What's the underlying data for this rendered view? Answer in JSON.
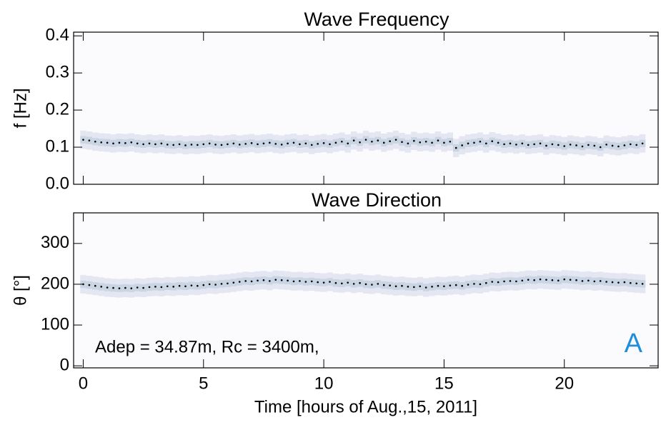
{
  "chart_data": [
    {
      "type": "scatter",
      "title": "Wave Frequency",
      "ylabel": "f [Hz]",
      "xlim": [
        -0.4,
        23.9
      ],
      "xticks": [
        0,
        5,
        10,
        15,
        20
      ],
      "ylim": [
        0,
        0.41
      ],
      "yticks": [
        {
          "value": 0,
          "label": "0.0"
        },
        0.1,
        0.2,
        0.3,
        0.4
      ],
      "x": [
        0,
        0.25,
        0.5,
        0.75,
        1,
        1.25,
        1.5,
        1.75,
        2,
        2.25,
        2.5,
        2.75,
        3,
        3.25,
        3.5,
        3.75,
        4,
        4.25,
        4.5,
        4.75,
        5,
        5.25,
        5.5,
        5.75,
        6,
        6.25,
        6.5,
        6.75,
        7,
        7.25,
        7.5,
        7.75,
        8,
        8.25,
        8.5,
        8.75,
        9,
        9.25,
        9.5,
        9.75,
        10,
        10.25,
        10.5,
        10.75,
        11,
        11.25,
        11.5,
        11.75,
        12,
        12.25,
        12.5,
        12.75,
        13,
        13.25,
        13.5,
        13.75,
        14,
        14.25,
        14.5,
        14.75,
        15,
        15.25,
        15.5,
        15.75,
        16,
        16.25,
        16.5,
        16.75,
        17,
        17.25,
        17.5,
        17.75,
        18,
        18.25,
        18.5,
        18.75,
        19,
        19.25,
        19.5,
        19.75,
        20,
        20.25,
        20.5,
        20.75,
        21,
        21.25,
        21.5,
        21.75,
        22,
        22.25,
        22.5,
        22.75,
        23,
        23.25
      ],
      "series": [
        {
          "color": "#000000",
          "values": [
            0.12,
            0.118,
            0.115,
            0.113,
            0.112,
            0.11,
            0.112,
            0.111,
            0.113,
            0.11,
            0.108,
            0.11,
            0.108,
            0.11,
            0.107,
            0.106,
            0.108,
            0.105,
            0.107,
            0.106,
            0.108,
            0.11,
            0.107,
            0.106,
            0.108,
            0.11,
            0.107,
            0.109,
            0.111,
            0.108,
            0.11,
            0.112,
            0.109,
            0.107,
            0.11,
            0.112,
            0.108,
            0.11,
            0.106,
            0.109,
            0.111,
            0.108,
            0.112,
            0.115,
            0.11,
            0.118,
            0.113,
            0.12,
            0.115,
            0.118,
            0.112,
            0.116,
            0.12,
            0.114,
            0.11,
            0.117,
            0.113,
            0.115,
            0.112,
            0.118,
            0.112,
            0.115,
            0.098,
            0.105,
            0.11,
            0.112,
            0.115,
            0.11,
            0.116,
            0.112,
            0.108,
            0.11,
            0.107,
            0.11,
            0.106,
            0.108,
            0.11,
            0.104,
            0.108,
            0.106,
            0.103,
            0.107,
            0.105,
            0.102,
            0.106,
            0.104,
            0.1,
            0.107,
            0.104,
            0.102,
            0.105,
            0.108,
            0.106,
            0.11
          ]
        }
      ]
    },
    {
      "type": "scatter",
      "title": "Wave Direction",
      "ylabel": "θ [°]",
      "xlabel": "Time [hours of Aug.,15, 2011]",
      "xlim": [
        -0.4,
        23.9
      ],
      "xticks": [
        0,
        5,
        10,
        15,
        20
      ],
      "ylim": [
        -5,
        375
      ],
      "yticks": [
        0,
        100,
        200,
        300
      ],
      "annotations": [
        {
          "text": "Adep = 34.87m, Rc = 3400m,",
          "color": "#000000"
        },
        {
          "text": "A",
          "color": "#1e8fd8"
        }
      ],
      "x": [
        0,
        0.25,
        0.5,
        0.75,
        1,
        1.25,
        1.5,
        1.75,
        2,
        2.25,
        2.5,
        2.75,
        3,
        3.25,
        3.5,
        3.75,
        4,
        4.25,
        4.5,
        4.75,
        5,
        5.25,
        5.5,
        5.75,
        6,
        6.25,
        6.5,
        6.75,
        7,
        7.25,
        7.5,
        7.75,
        8,
        8.25,
        8.5,
        8.75,
        9,
        9.25,
        9.5,
        9.75,
        10,
        10.25,
        10.5,
        10.75,
        11,
        11.25,
        11.5,
        11.75,
        12,
        12.25,
        12.5,
        12.75,
        13,
        13.25,
        13.5,
        13.75,
        14,
        14.25,
        14.5,
        14.75,
        15,
        15.25,
        15.5,
        15.75,
        16,
        16.25,
        16.5,
        16.75,
        17,
        17.25,
        17.5,
        17.75,
        18,
        18.25,
        18.5,
        18.75,
        19,
        19.25,
        19.5,
        19.75,
        20,
        20.25,
        20.5,
        20.75,
        21,
        21.25,
        21.5,
        21.75,
        22,
        22.25,
        22.5,
        22.75,
        23,
        23.25
      ],
      "series": [
        {
          "color": "#000000",
          "values": [
            200,
            198,
            196,
            194,
            192,
            191,
            190,
            191,
            190,
            192,
            191,
            193,
            194,
            193,
            195,
            194,
            196,
            195,
            197,
            196,
            198,
            200,
            199,
            201,
            202,
            204,
            206,
            208,
            207,
            209,
            210,
            208,
            211,
            210,
            209,
            207,
            208,
            206,
            207,
            205,
            204,
            206,
            203,
            202,
            204,
            201,
            203,
            200,
            199,
            201,
            198,
            197,
            195,
            196,
            194,
            193,
            195,
            192,
            194,
            196,
            195,
            197,
            198,
            196,
            199,
            201,
            200,
            203,
            206,
            205,
            207,
            208,
            207,
            209,
            211,
            210,
            212,
            211,
            210,
            209,
            212,
            211,
            210,
            208,
            209,
            207,
            208,
            206,
            205,
            204,
            205,
            203,
            202,
            201
          ]
        }
      ]
    }
  ]
}
